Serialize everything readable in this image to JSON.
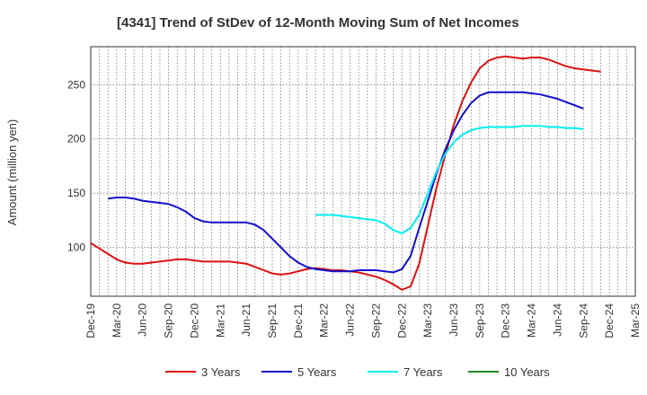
{
  "chart_data": {
    "type": "line",
    "title": "[4341]  Trend of StDev of 12-Month Moving Sum of Net Incomes",
    "ylabel": "Amount (million yen)",
    "xlabel": "",
    "ylim": [
      55,
      285
    ],
    "yticks": [
      100,
      150,
      200,
      250
    ],
    "x_start": "Dec-19",
    "x_tick_labels": [
      "Dec-19",
      "Mar-20",
      "Jun-20",
      "Sep-20",
      "Dec-20",
      "Mar-21",
      "Jun-21",
      "Sep-21",
      "Dec-21",
      "Mar-22",
      "Jun-22",
      "Sep-22",
      "Dec-22",
      "Mar-23",
      "Jun-23",
      "Sep-23",
      "Dec-23",
      "Mar-24",
      "Jun-24",
      "Sep-24",
      "Dec-24",
      "Mar-25"
    ],
    "grid": true,
    "legend_position": "bottom",
    "series": [
      {
        "name": "3 Years",
        "color": "#dd1111",
        "start": "Dec-19",
        "values": [
          104,
          99,
          94,
          89,
          86,
          85,
          85,
          86,
          87,
          88,
          89,
          89,
          88,
          87,
          87,
          87,
          87,
          86,
          85,
          82,
          79,
          76,
          75,
          76,
          78,
          80,
          81,
          80,
          79,
          79,
          78,
          77,
          75,
          73,
          70,
          66,
          61,
          64,
          85,
          120,
          155,
          185,
          213,
          235,
          252,
          265,
          272,
          275,
          276,
          275,
          274,
          275,
          275,
          273,
          270,
          267,
          265,
          264,
          263,
          262
        ]
      },
      {
        "name": "5 Years",
        "color": "#1111cc",
        "start": "Dec-19",
        "values": [
          null,
          null,
          145,
          146,
          146,
          145,
          143,
          142,
          141,
          140,
          137,
          133,
          127,
          124,
          123,
          123,
          123,
          123,
          123,
          121,
          116,
          108,
          100,
          92,
          86,
          82,
          80,
          79,
          78,
          78,
          78,
          79,
          79,
          79,
          78,
          77,
          80,
          92,
          118,
          143,
          168,
          190,
          208,
          222,
          233,
          240,
          243,
          243,
          243,
          243,
          243,
          242,
          241,
          239,
          237,
          234,
          231,
          228
        ]
      },
      {
        "name": "7 Years",
        "color": "#00eeee",
        "start": "Dec-19",
        "values": [
          null,
          null,
          null,
          null,
          null,
          null,
          null,
          null,
          null,
          null,
          null,
          null,
          null,
          null,
          null,
          null,
          null,
          null,
          null,
          null,
          null,
          null,
          null,
          null,
          null,
          null,
          130,
          130,
          130,
          129,
          128,
          127,
          126,
          125,
          122,
          116,
          113,
          118,
          130,
          150,
          170,
          186,
          197,
          204,
          208,
          210,
          211,
          211,
          211,
          211,
          212,
          212,
          212,
          211,
          211,
          210,
          210,
          209
        ]
      },
      {
        "name": "10 Years",
        "color": "#228822",
        "start": "Dec-19",
        "values": []
      }
    ]
  }
}
